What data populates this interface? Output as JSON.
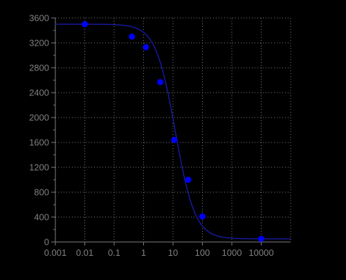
{
  "chart_data": {
    "type": "scatter",
    "title": "",
    "xlabel": "",
    "ylabel": "",
    "x_scale": "log",
    "xlim": [
      0.001,
      100000
    ],
    "ylim": [
      0,
      3600
    ],
    "grid": true,
    "x_ticks": [
      "0.001",
      "0.01",
      "0.1",
      "1",
      "10",
      "100",
      "1000",
      "10000"
    ],
    "y_ticks": [
      "0",
      "400",
      "800",
      "1200",
      "1600",
      "2000",
      "2400",
      "2800",
      "3200",
      "3600"
    ],
    "series": [
      {
        "points": [
          {
            "x": 0.01,
            "y": 3500
          },
          {
            "x": 0.4,
            "y": 3300
          },
          {
            "x": 1.2,
            "y": 3130
          },
          {
            "x": 3.7,
            "y": 2570
          },
          {
            "x": 11,
            "y": 1640
          },
          {
            "x": 33,
            "y": 1000
          },
          {
            "x": 100,
            "y": 410
          },
          {
            "x": 10000,
            "y": 50
          }
        ]
      }
    ],
    "fit_curve": {
      "model": "4-parameter logistic",
      "top": 3500,
      "bottom": 50,
      "ec50": 12,
      "hill_slope": 1.3,
      "x_range": [
        0.001,
        100000
      ]
    },
    "colors": {
      "background": "#000000",
      "plot_background": "#000000",
      "axis": "#808080",
      "grid": "#808080",
      "tick_label": "#808080",
      "curve": "#1818a0",
      "point": "#0000ff"
    }
  }
}
